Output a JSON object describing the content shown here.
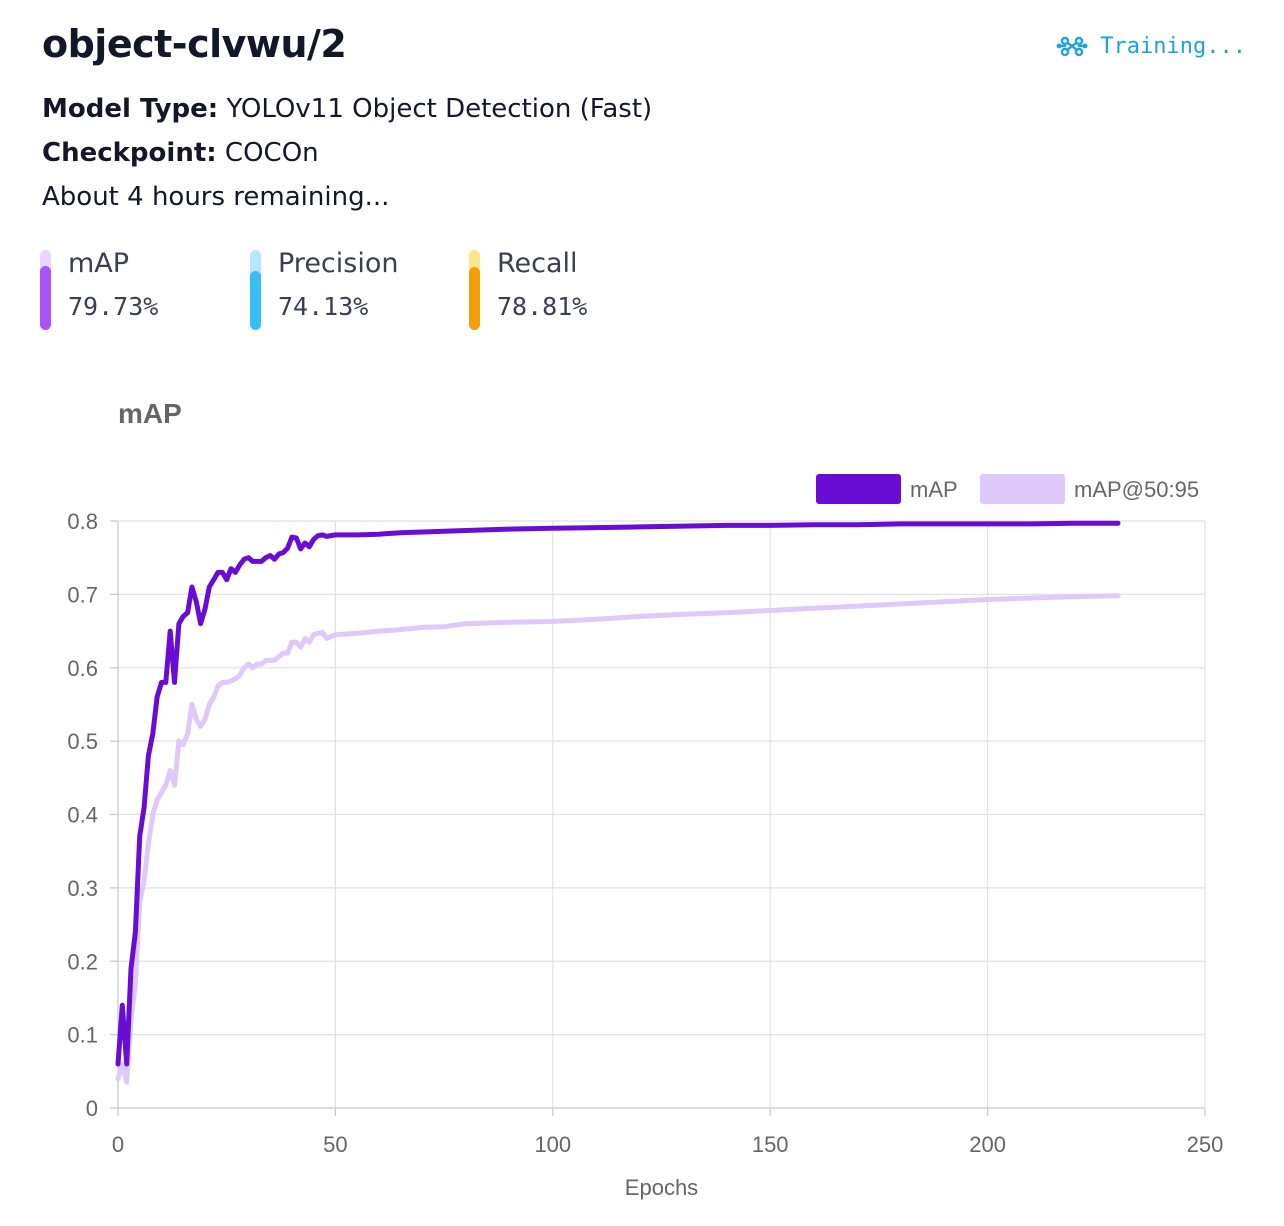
{
  "header": {
    "title": "object-clvwu/2",
    "status_label": "Training...",
    "status_icon": "network-nodes-icon"
  },
  "info": {
    "model_type_label": "Model Type:",
    "model_type_value": "YOLOv11 Object Detection (Fast)",
    "checkpoint_label": "Checkpoint:",
    "checkpoint_value": "COCOn",
    "remaining": "About 4 hours remaining..."
  },
  "metrics": [
    {
      "label": "mAP",
      "value": "79.73%",
      "fraction": 0.7973,
      "color": "#a855f7",
      "track_color": "#e9d5ff"
    },
    {
      "label": "Precision",
      "value": "74.13%",
      "fraction": 0.7413,
      "color": "#38bdf8",
      "track_color": "#bae6fd"
    },
    {
      "label": "Recall",
      "value": "78.81%",
      "fraction": 0.7881,
      "color": "#f59e0b",
      "track_color": "#fde68a"
    }
  ],
  "chart_data": {
    "type": "line",
    "title": "mAP",
    "xlabel": "Epochs",
    "ylabel": "",
    "xlim": [
      0,
      250
    ],
    "ylim": [
      0,
      0.8
    ],
    "x_ticks": [
      "0",
      "50",
      "100",
      "150",
      "200",
      "250"
    ],
    "y_ticks": [
      "0",
      "0.1",
      "0.2",
      "0.3",
      "0.4",
      "0.5",
      "0.6",
      "0.7",
      "0.8"
    ],
    "grid": true,
    "legend_position": "top-right",
    "series": [
      {
        "name": "mAP",
        "color": "#6a0dd4",
        "points": [
          [
            0,
            0.06
          ],
          [
            1,
            0.14
          ],
          [
            2,
            0.06
          ],
          [
            3,
            0.19
          ],
          [
            4,
            0.24
          ],
          [
            5,
            0.37
          ],
          [
            6,
            0.41
          ],
          [
            7,
            0.48
          ],
          [
            8,
            0.51
          ],
          [
            9,
            0.56
          ],
          [
            10,
            0.58
          ],
          [
            11,
            0.58
          ],
          [
            12,
            0.65
          ],
          [
            13,
            0.58
          ],
          [
            14,
            0.66
          ],
          [
            15,
            0.67
          ],
          [
            16,
            0.675
          ],
          [
            17,
            0.71
          ],
          [
            18,
            0.69
          ],
          [
            19,
            0.66
          ],
          [
            20,
            0.68
          ],
          [
            21,
            0.71
          ],
          [
            22,
            0.72
          ],
          [
            23,
            0.73
          ],
          [
            24,
            0.73
          ],
          [
            25,
            0.72
          ],
          [
            26,
            0.735
          ],
          [
            27,
            0.73
          ],
          [
            28,
            0.74
          ],
          [
            29,
            0.748
          ],
          [
            30,
            0.75
          ],
          [
            31,
            0.745
          ],
          [
            32,
            0.745
          ],
          [
            33,
            0.745
          ],
          [
            34,
            0.75
          ],
          [
            35,
            0.753
          ],
          [
            36,
            0.748
          ],
          [
            37,
            0.755
          ],
          [
            38,
            0.757
          ],
          [
            39,
            0.763
          ],
          [
            40,
            0.778
          ],
          [
            41,
            0.777
          ],
          [
            42,
            0.762
          ],
          [
            43,
            0.77
          ],
          [
            44,
            0.765
          ],
          [
            45,
            0.775
          ],
          [
            46,
            0.78
          ],
          [
            47,
            0.781
          ],
          [
            48,
            0.779
          ],
          [
            50,
            0.781
          ],
          [
            55,
            0.781
          ],
          [
            60,
            0.782
          ],
          [
            65,
            0.784
          ],
          [
            70,
            0.785
          ],
          [
            75,
            0.786
          ],
          [
            80,
            0.787
          ],
          [
            90,
            0.789
          ],
          [
            100,
            0.79
          ],
          [
            110,
            0.791
          ],
          [
            120,
            0.792
          ],
          [
            130,
            0.793
          ],
          [
            140,
            0.794
          ],
          [
            150,
            0.794
          ],
          [
            160,
            0.795
          ],
          [
            170,
            0.795
          ],
          [
            180,
            0.796
          ],
          [
            190,
            0.796
          ],
          [
            200,
            0.796
          ],
          [
            210,
            0.796
          ],
          [
            220,
            0.797
          ],
          [
            230,
            0.797
          ]
        ]
      },
      {
        "name": "mAP@50:95",
        "color": "#dfc8fa",
        "points": [
          [
            0,
            0.04
          ],
          [
            1,
            0.06
          ],
          [
            2,
            0.035
          ],
          [
            3,
            0.12
          ],
          [
            4,
            0.17
          ],
          [
            5,
            0.28
          ],
          [
            6,
            0.31
          ],
          [
            7,
            0.36
          ],
          [
            8,
            0.4
          ],
          [
            9,
            0.42
          ],
          [
            10,
            0.43
          ],
          [
            11,
            0.44
          ],
          [
            12,
            0.46
          ],
          [
            13,
            0.44
          ],
          [
            14,
            0.5
          ],
          [
            15,
            0.495
          ],
          [
            16,
            0.51
          ],
          [
            17,
            0.55
          ],
          [
            18,
            0.53
          ],
          [
            19,
            0.52
          ],
          [
            20,
            0.53
          ],
          [
            21,
            0.55
          ],
          [
            22,
            0.56
          ],
          [
            23,
            0.575
          ],
          [
            24,
            0.58
          ],
          [
            25,
            0.58
          ],
          [
            26,
            0.582
          ],
          [
            27,
            0.585
          ],
          [
            28,
            0.59
          ],
          [
            29,
            0.6
          ],
          [
            30,
            0.605
          ],
          [
            31,
            0.6
          ],
          [
            32,
            0.605
          ],
          [
            33,
            0.605
          ],
          [
            34,
            0.61
          ],
          [
            35,
            0.61
          ],
          [
            36,
            0.61
          ],
          [
            37,
            0.615
          ],
          [
            38,
            0.62
          ],
          [
            39,
            0.62
          ],
          [
            40,
            0.635
          ],
          [
            41,
            0.635
          ],
          [
            42,
            0.628
          ],
          [
            43,
            0.64
          ],
          [
            44,
            0.635
          ],
          [
            45,
            0.645
          ],
          [
            46,
            0.647
          ],
          [
            47,
            0.648
          ],
          [
            48,
            0.64
          ],
          [
            50,
            0.645
          ],
          [
            55,
            0.647
          ],
          [
            60,
            0.65
          ],
          [
            65,
            0.652
          ],
          [
            70,
            0.655
          ],
          [
            75,
            0.656
          ],
          [
            80,
            0.66
          ],
          [
            90,
            0.662
          ],
          [
            100,
            0.663
          ],
          [
            110,
            0.666
          ],
          [
            120,
            0.67
          ],
          [
            130,
            0.673
          ],
          [
            140,
            0.675
          ],
          [
            150,
            0.678
          ],
          [
            160,
            0.681
          ],
          [
            170,
            0.684
          ],
          [
            180,
            0.687
          ],
          [
            190,
            0.69
          ],
          [
            200,
            0.693
          ],
          [
            210,
            0.695
          ],
          [
            220,
            0.697
          ],
          [
            230,
            0.698
          ]
        ]
      }
    ]
  }
}
